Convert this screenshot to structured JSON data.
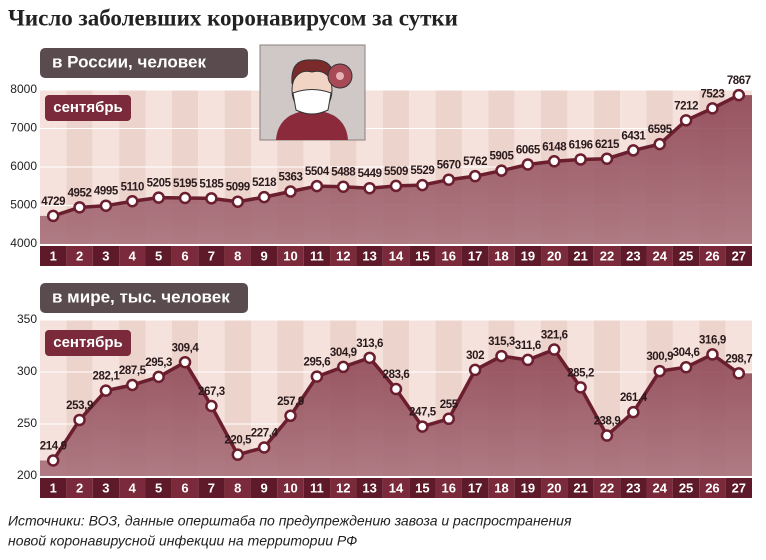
{
  "title": "Число заболевших коронавирусом за сутки",
  "source": [
    "Источники: ВОЗ, данные оперштаба по предупреждению завоза и распространения",
    "новой коронавирусной инфекции на территории РФ"
  ],
  "chart_data": [
    {
      "type": "area",
      "label": "в России, человек",
      "month": "сентябрь",
      "categories": [
        "1",
        "2",
        "3",
        "4",
        "5",
        "6",
        "7",
        "8",
        "9",
        "10",
        "11",
        "12",
        "13",
        "14",
        "15",
        "16",
        "17",
        "18",
        "19",
        "20",
        "21",
        "22",
        "23",
        "24",
        "25",
        "26",
        "27"
      ],
      "values": [
        4729,
        4952,
        4995,
        5110,
        5205,
        5195,
        5185,
        5099,
        5218,
        5363,
        5504,
        5488,
        5449,
        5509,
        5529,
        5670,
        5762,
        5905,
        6065,
        6148,
        6196,
        6215,
        6431,
        6595,
        7212,
        7523,
        7867
      ],
      "color": "#6b1e2e",
      "ylim": [
        4000,
        8000
      ],
      "yticks": [
        4000,
        5000,
        6000,
        7000,
        8000
      ],
      "grid": true
    },
    {
      "type": "area",
      "label": "в мире, тыс. человек",
      "month": "сентябрь",
      "categories": [
        "1",
        "2",
        "3",
        "4",
        "5",
        "6",
        "7",
        "8",
        "9",
        "10",
        "11",
        "12",
        "13",
        "14",
        "15",
        "16",
        "17",
        "18",
        "19",
        "20",
        "21",
        "22",
        "23",
        "24",
        "25",
        "26",
        "27"
      ],
      "values": [
        214.9,
        253.9,
        282.1,
        287.5,
        295.3,
        309.4,
        267.3,
        220.5,
        227.4,
        257.9,
        295.6,
        304.9,
        313.6,
        283.6,
        247.5,
        255,
        302,
        315.3,
        311.6,
        321.6,
        285.2,
        238.9,
        261.4,
        300.9,
        304.6,
        316.9,
        298.7
      ],
      "value_labels": [
        "214,9",
        "253,9",
        "282,1",
        "287,5",
        "295,3",
        "309,4",
        "267,3",
        "220,5",
        "227,4",
        "257,9",
        "295,6",
        "304,9",
        "313,6",
        "283,6",
        "247,5",
        "255",
        "302",
        "315,3",
        "311,6",
        "321,6",
        "285,2",
        "238,9",
        "261,4",
        "300,9",
        "304,6",
        "316,9",
        "298,7"
      ],
      "color": "#6b1e2e",
      "ylim": [
        200,
        350
      ],
      "yticks": [
        200,
        250,
        300,
        350
      ],
      "grid": true
    }
  ]
}
